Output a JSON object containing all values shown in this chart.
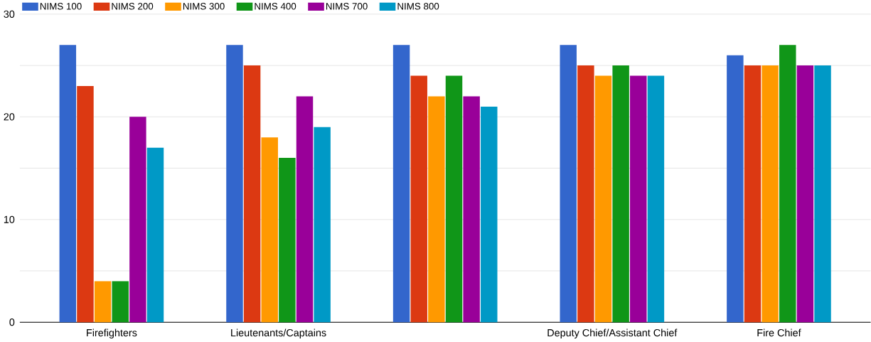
{
  "chart_data": {
    "type": "bar",
    "categories": [
      "Firefighters",
      "Lieutenants/Captains",
      null,
      "Deputy Chief/Assistant Chief",
      "Fire Chief"
    ],
    "series": [
      {
        "name": "NIMS 100",
        "color": "#3366cc",
        "values": [
          27,
          27,
          27,
          27,
          26
        ]
      },
      {
        "name": "NIMS 200",
        "color": "#dc3912",
        "values": [
          23,
          25,
          24,
          25,
          25
        ]
      },
      {
        "name": "NIMS 300",
        "color": "#ff9900",
        "values": [
          4,
          18,
          22,
          24,
          25
        ]
      },
      {
        "name": "NIMS 400",
        "color": "#109618",
        "values": [
          4,
          16,
          24,
          25,
          27
        ]
      },
      {
        "name": "NIMS 700",
        "color": "#990099",
        "values": [
          20,
          22,
          22,
          24,
          25
        ]
      },
      {
        "name": "NIMS 800",
        "color": "#0099c6",
        "values": [
          17,
          19,
          21,
          24,
          25
        ]
      }
    ],
    "ylim": [
      0,
      30
    ],
    "yticks": [
      0,
      {
        "value": 5,
        "label": null
      },
      10,
      {
        "value": 15,
        "label": null
      },
      20,
      {
        "value": 25,
        "label": null
      },
      30
    ],
    "grid": "y",
    "legend": "top left"
  }
}
